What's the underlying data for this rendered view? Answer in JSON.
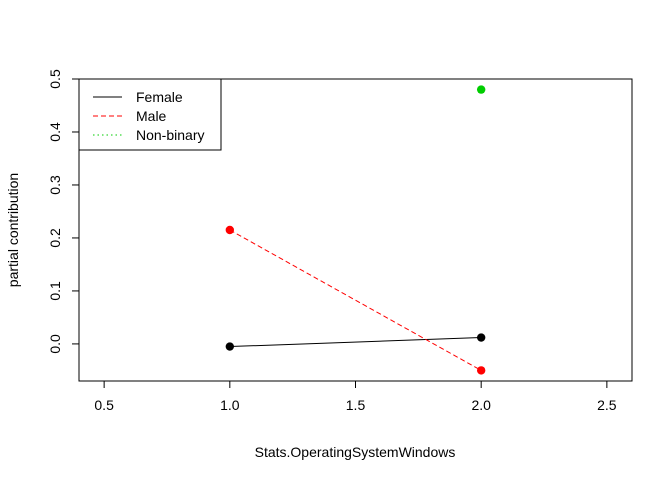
{
  "chart_data": {
    "type": "line",
    "title": "",
    "xlabel": "Stats.OperatingSystemWindows",
    "ylabel": "partial contribution",
    "xlim": [
      0.4,
      2.6
    ],
    "ylim": [
      -0.07,
      0.5
    ],
    "xticks": [
      0.5,
      1.0,
      1.5,
      2.0,
      2.5
    ],
    "xtick_labels": [
      "0.5",
      "1.0",
      "1.5",
      "2.0",
      "2.5"
    ],
    "yticks": [
      0.0,
      0.1,
      0.2,
      0.3,
      0.4,
      0.5
    ],
    "ytick_labels": [
      "0.0",
      "0.1",
      "0.2",
      "0.3",
      "0.4",
      "0.5"
    ],
    "grid": false,
    "legend_position": "top-left",
    "series": [
      {
        "name": "Female",
        "color": "#000000",
        "line_style": "solid",
        "x": [
          1,
          2
        ],
        "y": [
          -0.005,
          0.012
        ]
      },
      {
        "name": "Male",
        "color": "#ff0000",
        "line_style": "dashed",
        "x": [
          1,
          2
        ],
        "y": [
          0.215,
          -0.05
        ]
      },
      {
        "name": "Non-binary",
        "color": "#00cd00",
        "line_style": "dotted",
        "x": [
          2
        ],
        "y": [
          0.48
        ]
      }
    ]
  }
}
